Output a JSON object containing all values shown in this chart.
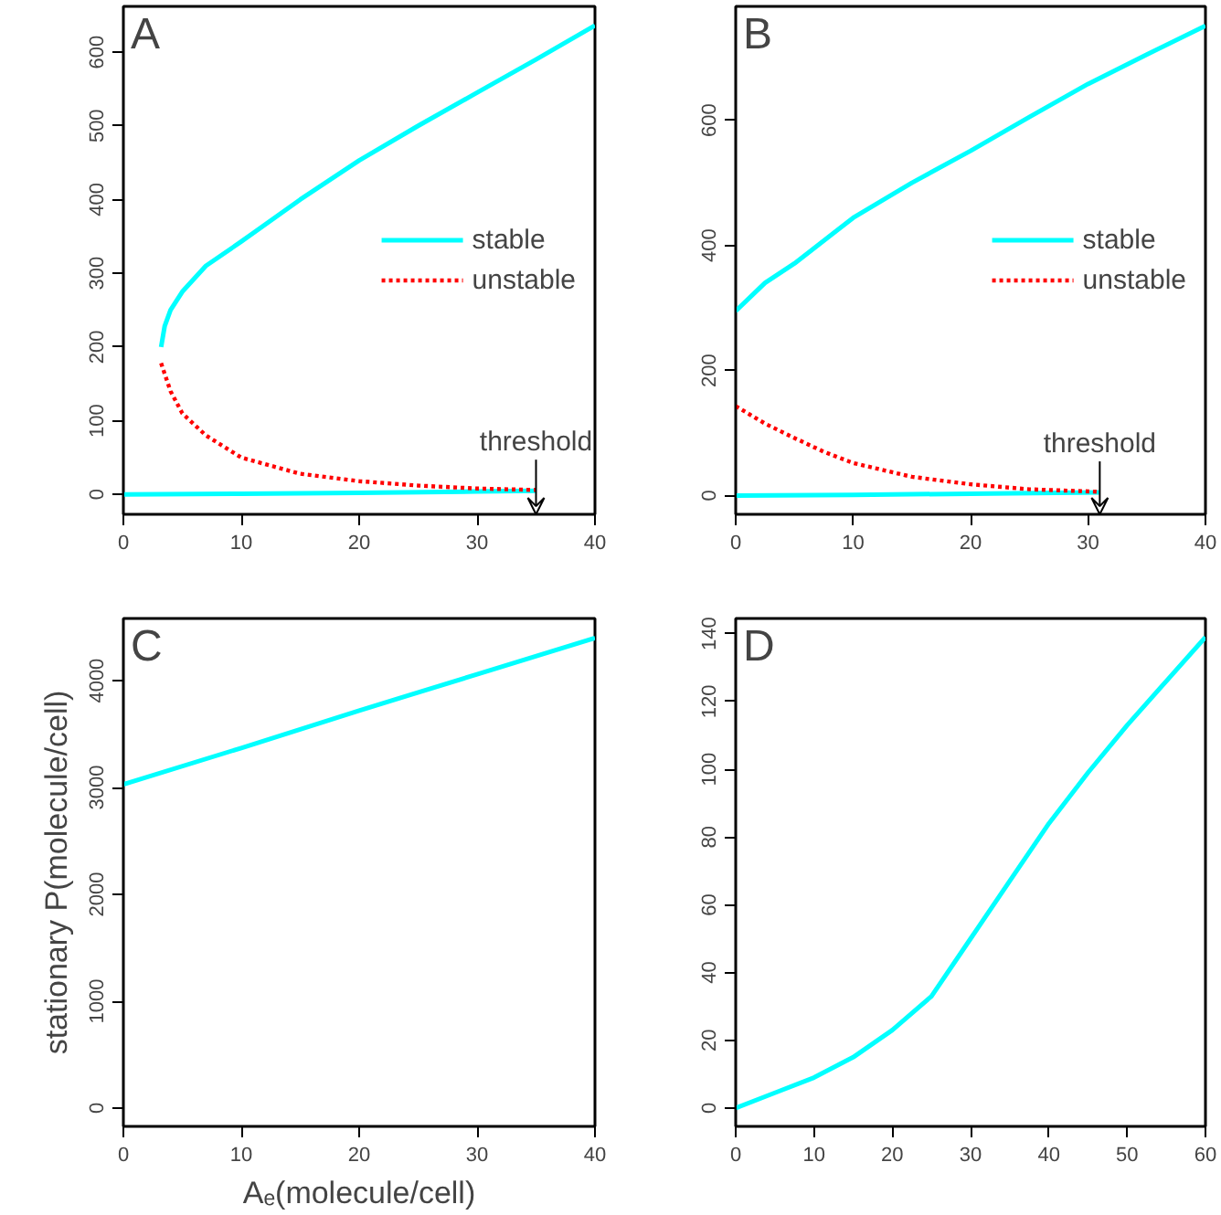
{
  "chart_data": [
    {
      "type": "line",
      "xlim": [
        0,
        40
      ],
      "ylim": [
        -27,
        662
      ],
      "xticks": [
        0,
        10,
        20,
        30,
        40
      ],
      "yticks": [
        0,
        100,
        200,
        300,
        400,
        500,
        600
      ],
      "grid": false,
      "legend": "right",
      "annotations": [
        "A",
        {
          "text": "threshold",
          "x": 35,
          "y": 5
        }
      ],
      "series": [
        {
          "name": "stable",
          "color": "#00ffff",
          "line_style": "solid",
          "x": [
            3.2,
            3.5,
            4,
            5,
            7,
            10,
            15,
            20,
            25,
            30,
            35,
            40
          ],
          "values": [
            200,
            228,
            250,
            275,
            310,
            343,
            400,
            453,
            500,
            545,
            590,
            636
          ]
        },
        {
          "color": "#00ffff",
          "line_style": "solid",
          "x": [
            0,
            10,
            20,
            30,
            35
          ],
          "values": [
            0,
            1,
            2,
            4,
            5
          ]
        },
        {
          "name": "unstable",
          "color": "#ff0000",
          "line_style": "dotted",
          "x": [
            3.2,
            4,
            5,
            7,
            10,
            15,
            20,
            25,
            30,
            35
          ],
          "values": [
            178,
            140,
            110,
            80,
            50,
            28,
            18,
            12,
            8,
            6
          ]
        }
      ]
    },
    {
      "type": "line",
      "xlim": [
        0,
        40
      ],
      "ylim": [
        -30,
        782
      ],
      "xticks": [
        0,
        10,
        20,
        30,
        40
      ],
      "yticks": [
        0,
        200,
        400,
        600
      ],
      "grid": false,
      "legend": "right",
      "annotations": [
        "B",
        {
          "text": "threshold",
          "x": 31,
          "y": 5
        }
      ],
      "series": [
        {
          "name": "stable",
          "color": "#00ffff",
          "line_style": "solid",
          "x": [
            0,
            2.5,
            5,
            10,
            15,
            20,
            25,
            30,
            35,
            40
          ],
          "values": [
            295,
            340,
            371,
            444,
            500,
            551,
            605,
            658,
            705,
            751
          ]
        },
        {
          "color": "#00ffff",
          "line_style": "solid",
          "x": [
            0,
            10,
            20,
            31
          ],
          "values": [
            0,
            1,
            3,
            5
          ]
        },
        {
          "name": "unstable",
          "color": "#ff0000",
          "line_style": "dotted",
          "x": [
            0,
            2.5,
            5,
            7.5,
            10,
            15,
            20,
            25,
            31
          ],
          "values": [
            143,
            115,
            92,
            70,
            52,
            30,
            18,
            10,
            6
          ]
        }
      ]
    },
    {
      "type": "line",
      "xlim": [
        0,
        40
      ],
      "ylim": [
        -171,
        4582
      ],
      "xticks": [
        0,
        10,
        20,
        30,
        40
      ],
      "yticks": [
        0,
        1000,
        2000,
        3000,
        4000
      ],
      "grid": false,
      "legend": false,
      "xlabel": "Aₑ(molecule/cell)",
      "ylabel": "stationary P(molecule/cell)",
      "annotations": [
        "C"
      ],
      "series": [
        {
          "color": "#00ffff",
          "line_style": "solid",
          "x": [
            0,
            10,
            20,
            30,
            40
          ],
          "values": [
            3030,
            3370,
            3720,
            4060,
            4400
          ]
        }
      ]
    },
    {
      "type": "line",
      "xlim": [
        0,
        60
      ],
      "ylim": [
        -5.4,
        144.5
      ],
      "xticks": [
        0,
        10,
        20,
        30,
        40,
        50,
        60
      ],
      "yticks": [
        0,
        20,
        40,
        60,
        80,
        100,
        120,
        140
      ],
      "grid": false,
      "legend": false,
      "annotations": [
        "D"
      ],
      "series": [
        {
          "color": "#00ffff",
          "line_style": "solid",
          "x": [
            0,
            5,
            10,
            15,
            20,
            25,
            30,
            35,
            40,
            45,
            50,
            55,
            60
          ],
          "values": [
            0,
            4.5,
            9,
            15,
            23,
            33,
            50,
            67,
            84,
            99,
            113,
            126,
            139
          ]
        }
      ]
    }
  ]
}
